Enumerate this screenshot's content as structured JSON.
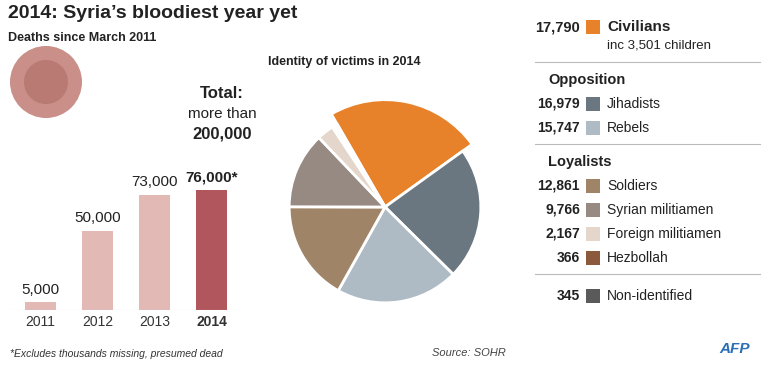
{
  "title": "2014: Syria’s bloodiest year yet",
  "source": "Source: SOHR",
  "credit": "AFP",
  "chart_data": [
    {
      "type": "bar",
      "subtitle": "Deaths since March 2011",
      "categories": [
        "2011",
        "2012",
        "2013",
        "2014"
      ],
      "values": [
        5000,
        50000,
        73000,
        76000
      ],
      "value_labels": [
        "5,000",
        "50,000",
        "73,000",
        "76,000*"
      ],
      "colors": [
        "#e3b9b6",
        "#e3b9b6",
        "#e3b9b6",
        "#b0565c"
      ],
      "ylim": [
        0,
        76000
      ],
      "data_labels": true,
      "tick_labels": "x",
      "annotations": [
        "Total:",
        "more than",
        "200,000"
      ],
      "footnote": "*Excludes thousands missing, presumed dead"
    },
    {
      "type": "pie",
      "title": "Identity of victims in 2014",
      "categories": [
        "Civilians",
        "Jihadists",
        "Rebels",
        "Soldiers",
        "Syrian militiamen",
        "Foreign militiamen",
        "Hezbollah",
        "Non-identified"
      ],
      "values": [
        17790,
        16979,
        15747,
        12861,
        9766,
        2167,
        366,
        345
      ],
      "value_labels": [
        "17,790",
        "16,979",
        "15,747",
        "12,861",
        "9,766",
        "2,167",
        "366",
        "345"
      ],
      "colors": [
        "#e8822a",
        "#6b7780",
        "#aebbc4",
        "#a08468",
        "#968a82",
        "#e4d6ca",
        "#8b5a3c",
        "#5a5a5a"
      ],
      "notes": [
        {
          "category": "Civilians",
          "text": "inc 3,501 children"
        }
      ],
      "groups": [
        {
          "name": "Opposition",
          "categories": [
            "Jihadists",
            "Rebels"
          ]
        },
        {
          "name": "Loyalists",
          "categories": [
            "Soldiers",
            "Syrian militiamen",
            "Foreign militiamen",
            "Hezbollah"
          ]
        }
      ]
    }
  ]
}
